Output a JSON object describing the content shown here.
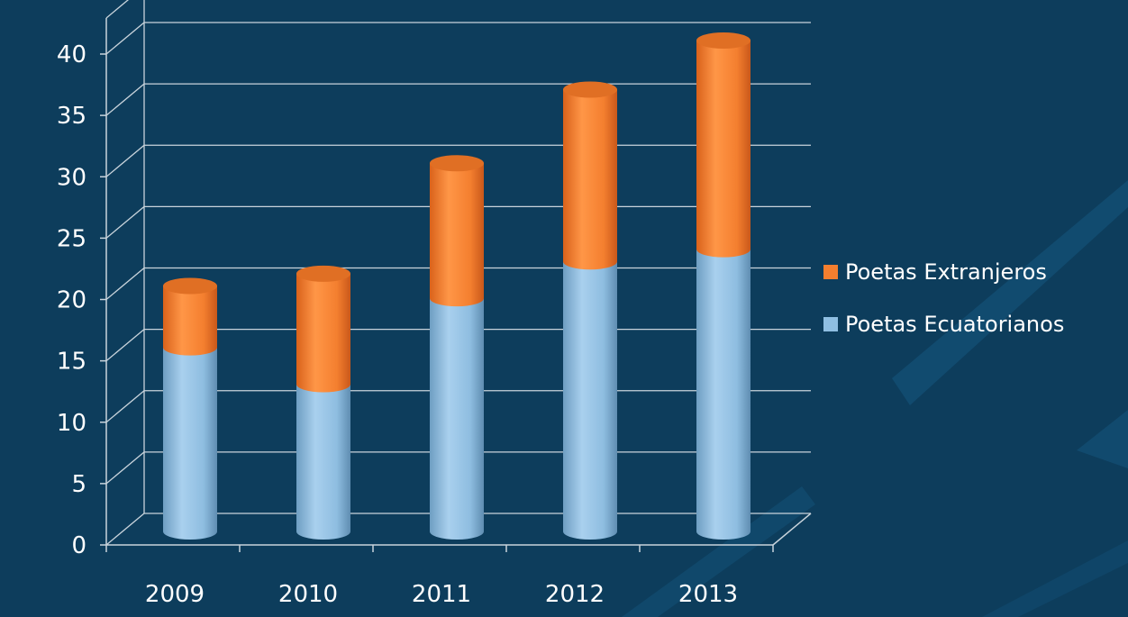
{
  "chart_data": {
    "type": "bar",
    "stacked": true,
    "style": "3d-cylinder",
    "categories": [
      "2009",
      "2010",
      "2011",
      "2012",
      "2013"
    ],
    "series": [
      {
        "name": "Poetas Ecuatorianos",
        "color": "#8fbfe2",
        "values": [
          15,
          12,
          19,
          22,
          23
        ]
      },
      {
        "name": "Poetas Extranjeros",
        "color": "#f47f2f",
        "values": [
          5,
          9,
          11,
          14,
          17
        ]
      }
    ],
    "title": "",
    "xlabel": "",
    "ylabel": "",
    "ylim": [
      0,
      40
    ],
    "yticks": [
      0,
      5,
      10,
      15,
      20,
      25,
      30,
      35,
      40
    ],
    "grid": true,
    "legend": {
      "position": "right",
      "entries": [
        "Poetas Extranjeros",
        "Poetas Ecuatorianos"
      ]
    }
  },
  "colors": {
    "background": "#0d3d5c",
    "background_accent": "#15577f",
    "grid": "#c9d4dc",
    "text": "#ffffff"
  }
}
